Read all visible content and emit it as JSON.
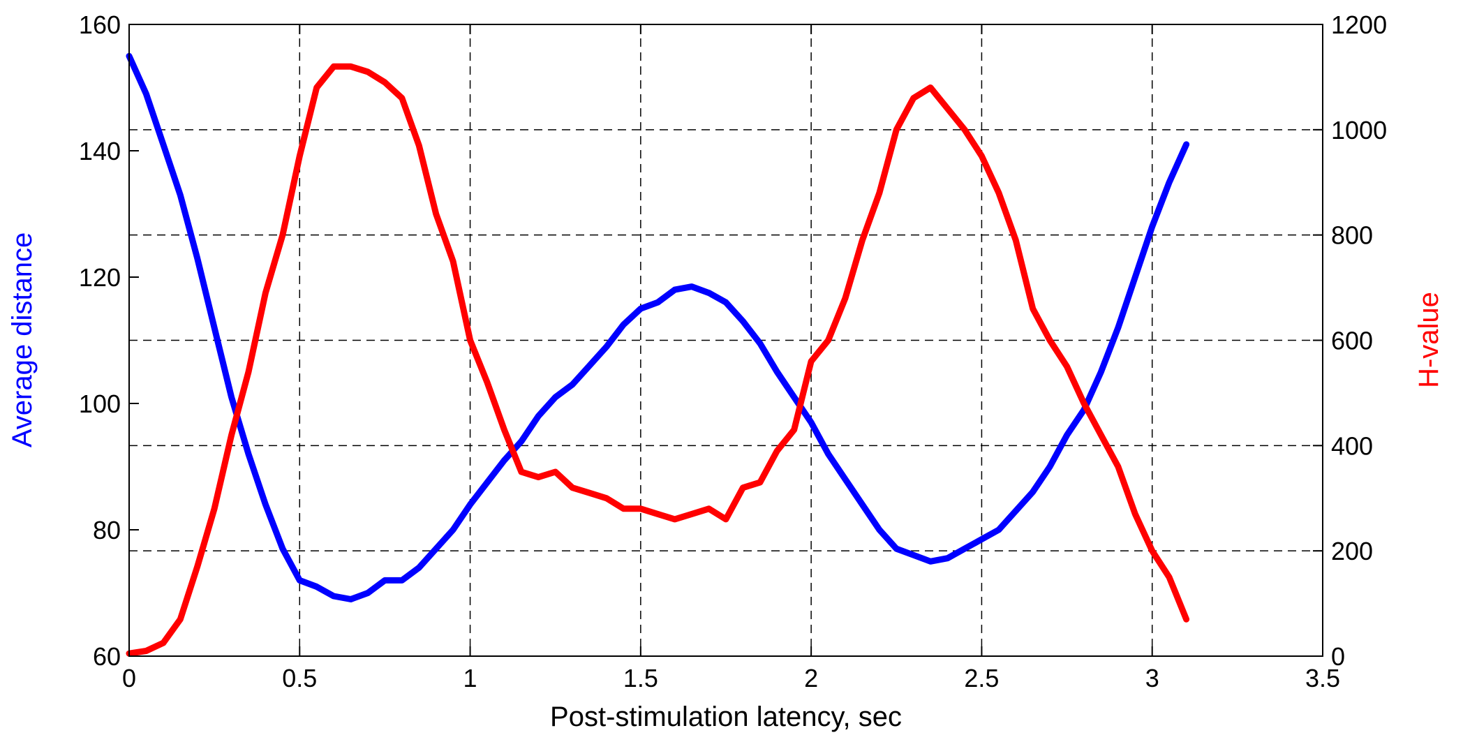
{
  "chart_data": {
    "type": "line",
    "xlabel": "Post-stimulation latency, sec",
    "ylabel_left": "Average distance",
    "ylabel_right": "H-value",
    "xlim": [
      0,
      3.5
    ],
    "ylim_left": [
      60,
      160
    ],
    "ylim_right": [
      0,
      1200
    ],
    "xticks": [
      "0",
      "0.5",
      "1",
      "1.5",
      "2",
      "2.5",
      "3",
      "3.5"
    ],
    "yticks_left": [
      "60",
      "80",
      "100",
      "120",
      "140",
      "160"
    ],
    "yticks_right": [
      "0",
      "200",
      "400",
      "600",
      "800",
      "1000",
      "1200"
    ],
    "grid": true,
    "colors": {
      "left_series": "#0000ff",
      "right_series": "#ff0000"
    },
    "series": [
      {
        "axis": "left",
        "x": [
          0,
          0.05,
          0.1,
          0.15,
          0.2,
          0.25,
          0.3,
          0.35,
          0.4,
          0.45,
          0.5,
          0.55,
          0.6,
          0.65,
          0.7,
          0.75,
          0.8,
          0.85,
          0.9,
          0.95,
          1.0,
          1.05,
          1.1,
          1.15,
          1.2,
          1.25,
          1.3,
          1.35,
          1.4,
          1.45,
          1.5,
          1.55,
          1.6,
          1.65,
          1.7,
          1.75,
          1.8,
          1.85,
          1.9,
          1.95,
          2.0,
          2.05,
          2.1,
          2.15,
          2.2,
          2.25,
          2.3,
          2.35,
          2.4,
          2.45,
          2.5,
          2.55,
          2.6,
          2.65,
          2.7,
          2.75,
          2.8,
          2.85,
          2.9,
          2.95,
          3.0,
          3.05,
          3.1
        ],
        "y": [
          155,
          149,
          141,
          133,
          123,
          112,
          101,
          92,
          84,
          77,
          72,
          71,
          69.5,
          69,
          70,
          72,
          72,
          74,
          77,
          80,
          84,
          87.5,
          91,
          94,
          98,
          101,
          103,
          106,
          109,
          112.5,
          115,
          116,
          118,
          118.5,
          117.5,
          116,
          113,
          109.5,
          105,
          101,
          97,
          92,
          88,
          84,
          80,
          77,
          76,
          75,
          75.5,
          77,
          78.5,
          80,
          83,
          86,
          90,
          95,
          99,
          105,
          112,
          120,
          128,
          135,
          141
        ]
      },
      {
        "axis": "right",
        "x": [
          0,
          0.05,
          0.1,
          0.15,
          0.2,
          0.25,
          0.3,
          0.35,
          0.4,
          0.45,
          0.5,
          0.55,
          0.6,
          0.65,
          0.7,
          0.75,
          0.8,
          0.85,
          0.9,
          0.95,
          1.0,
          1.05,
          1.1,
          1.15,
          1.2,
          1.25,
          1.3,
          1.35,
          1.4,
          1.45,
          1.5,
          1.55,
          1.6,
          1.65,
          1.7,
          1.75,
          1.8,
          1.85,
          1.9,
          1.95,
          2.0,
          2.05,
          2.1,
          2.15,
          2.2,
          2.25,
          2.3,
          2.35,
          2.4,
          2.45,
          2.5,
          2.55,
          2.6,
          2.65,
          2.7,
          2.75,
          2.8,
          2.85,
          2.9,
          2.95,
          3.0,
          3.05,
          3.1
        ],
        "y": [
          5,
          10,
          25,
          70,
          170,
          280,
          420,
          540,
          690,
          800,
          950,
          1080,
          1120,
          1120,
          1110,
          1090,
          1060,
          970,
          840,
          750,
          600,
          520,
          430,
          350,
          340,
          350,
          320,
          310,
          300,
          280,
          280,
          270,
          260,
          270,
          280,
          260,
          320,
          330,
          390,
          430,
          560,
          600,
          680,
          790,
          880,
          1000,
          1060,
          1080,
          1040,
          1000,
          950,
          880,
          790,
          660,
          600,
          550,
          480,
          420,
          360,
          270,
          200,
          150,
          70
        ]
      }
    ]
  }
}
